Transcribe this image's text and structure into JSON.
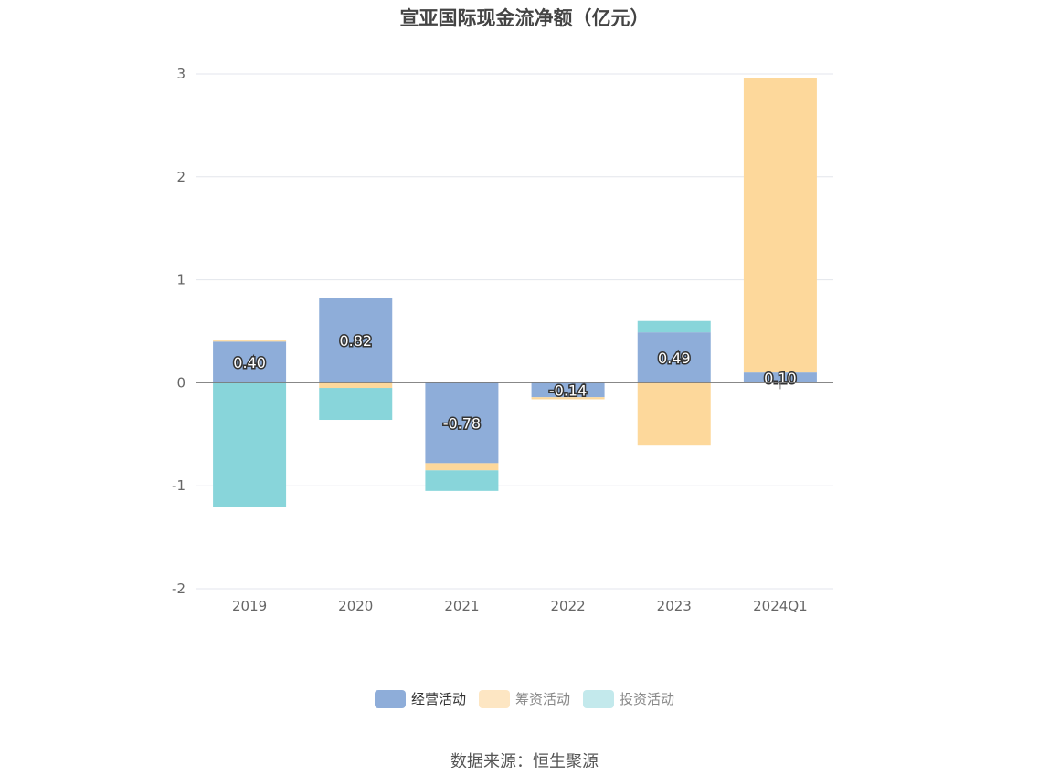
{
  "chart_data": {
    "type": "bar",
    "stacked": true,
    "title": "宣亚国际现金流净额（亿元）",
    "categories": [
      "2019",
      "2020",
      "2021",
      "2022",
      "2023",
      "2024Q1"
    ],
    "series": [
      {
        "name": "经营活动",
        "color": "#8eadd9",
        "values": [
          0.4,
          0.82,
          -0.78,
          -0.14,
          0.49,
          0.1
        ]
      },
      {
        "name": "筹资活动",
        "color": "#fdd89b",
        "values": [
          0.01,
          -0.05,
          -0.07,
          -0.02,
          -0.61,
          2.86
        ]
      },
      {
        "name": "投资活动",
        "color": "#88d5da",
        "values": [
          -1.21,
          -0.31,
          -0.2,
          0.01,
          0.11,
          0.0
        ]
      }
    ],
    "data_labels": [
      "0.40",
      "0.82",
      "-0.78",
      "-0.14",
      "0.49",
      "0.10"
    ],
    "y_ticks": [
      3,
      2,
      1,
      0,
      -1,
      -2
    ],
    "ylim": [
      -2,
      3
    ],
    "xlabel": "",
    "ylabel": "",
    "legend_position": "bottom"
  },
  "legend": [
    {
      "label": "经营活动",
      "swatch": "#8eadd9",
      "text_color": "#333333"
    },
    {
      "label": "筹资活动",
      "swatch": "#fde6c3",
      "text_color": "#888888"
    },
    {
      "label": "投资活动",
      "swatch": "#c3e9ec",
      "text_color": "#888888"
    }
  ],
  "source": "数据来源：恒生聚源"
}
